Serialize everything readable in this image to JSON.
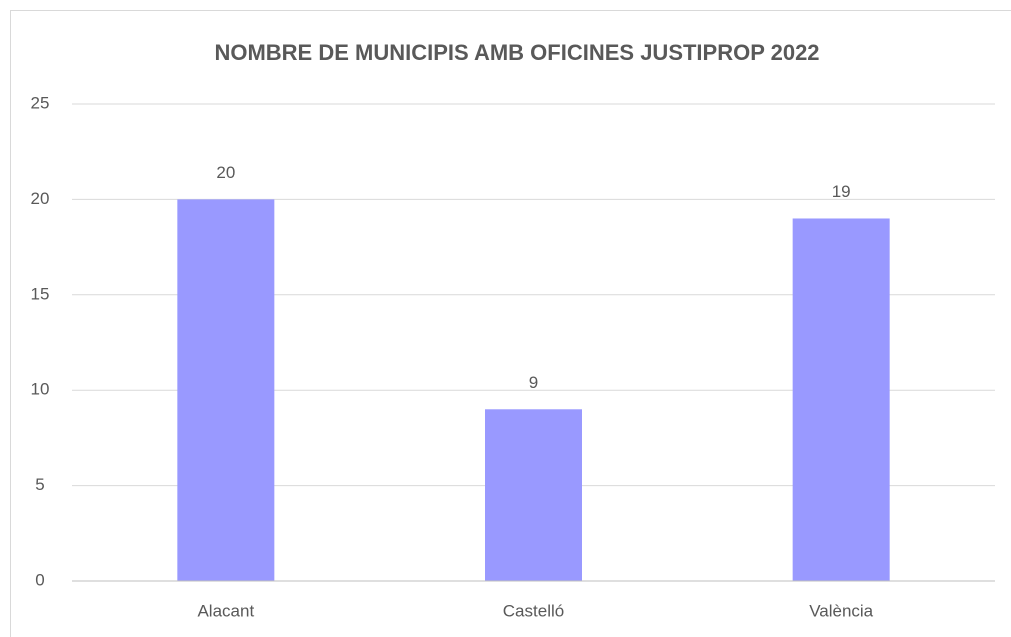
{
  "chart_data": {
    "type": "bar",
    "title": "NOMBRE DE MUNICIPIS AMB OFICINES JUSTIPROP 2022",
    "categories": [
      "Alacant",
      "Castelló",
      "València"
    ],
    "values": [
      20,
      9,
      19
    ],
    "color": "#9999ff",
    "ylim": [
      0,
      25
    ],
    "yticks": [
      0,
      5,
      10,
      15,
      20,
      25
    ],
    "grid": true
  }
}
